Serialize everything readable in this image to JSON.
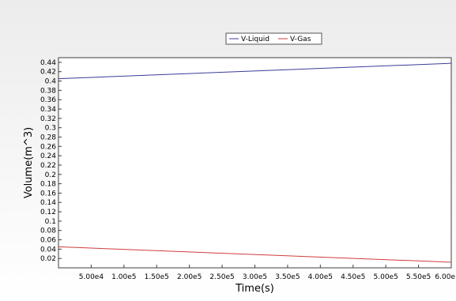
{
  "chart_data": {
    "type": "line",
    "title": "",
    "xlabel": "Time(s)",
    "ylabel": "Volume(m^3)",
    "xlim": [
      0,
      600000
    ],
    "ylim": [
      0,
      0.45
    ],
    "x_ticks": [
      50000,
      100000,
      150000,
      200000,
      250000,
      300000,
      350000,
      400000,
      450000,
      500000,
      550000,
      600000
    ],
    "x_tick_labels": [
      "5.00e4",
      "1.00e5",
      "1.50e5",
      "2.00e5",
      "2.50e5",
      "3.00e5",
      "3.50e5",
      "4.00e5",
      "4.50e5",
      "5.00e5",
      "5.50e5",
      "6.00e"
    ],
    "y_ticks": [
      0.02,
      0.04,
      0.06,
      0.08,
      0.1,
      0.12,
      0.14,
      0.16,
      0.18,
      0.2,
      0.22,
      0.24,
      0.26,
      0.28,
      0.3,
      0.32,
      0.34,
      0.36,
      0.38,
      0.4,
      0.42,
      0.44
    ],
    "y_tick_labels": [
      "0.02",
      "0.04",
      "0.06",
      "0.08",
      "0.1",
      "0.12",
      "0.14",
      "0.16",
      "0.18",
      "0.2",
      "0.22",
      "0.24",
      "0.26",
      "0.28",
      "0.3",
      "0.32",
      "0.34",
      "0.36",
      "0.38",
      "0.4",
      "0.42",
      "0.44"
    ],
    "grid": false,
    "legend_position": "top-center",
    "series": [
      {
        "name": "V-Liquid",
        "color": "#3b3b9a",
        "x": [
          0,
          600000
        ],
        "y": [
          0.405,
          0.438
        ]
      },
      {
        "name": "V-Gas",
        "color": "#d23c3c",
        "x": [
          0,
          600000
        ],
        "y": [
          0.045,
          0.012
        ]
      }
    ],
    "colors": {
      "background_top": "#ececec",
      "background_bottom": "#ffffff",
      "frame": "#404040"
    }
  }
}
